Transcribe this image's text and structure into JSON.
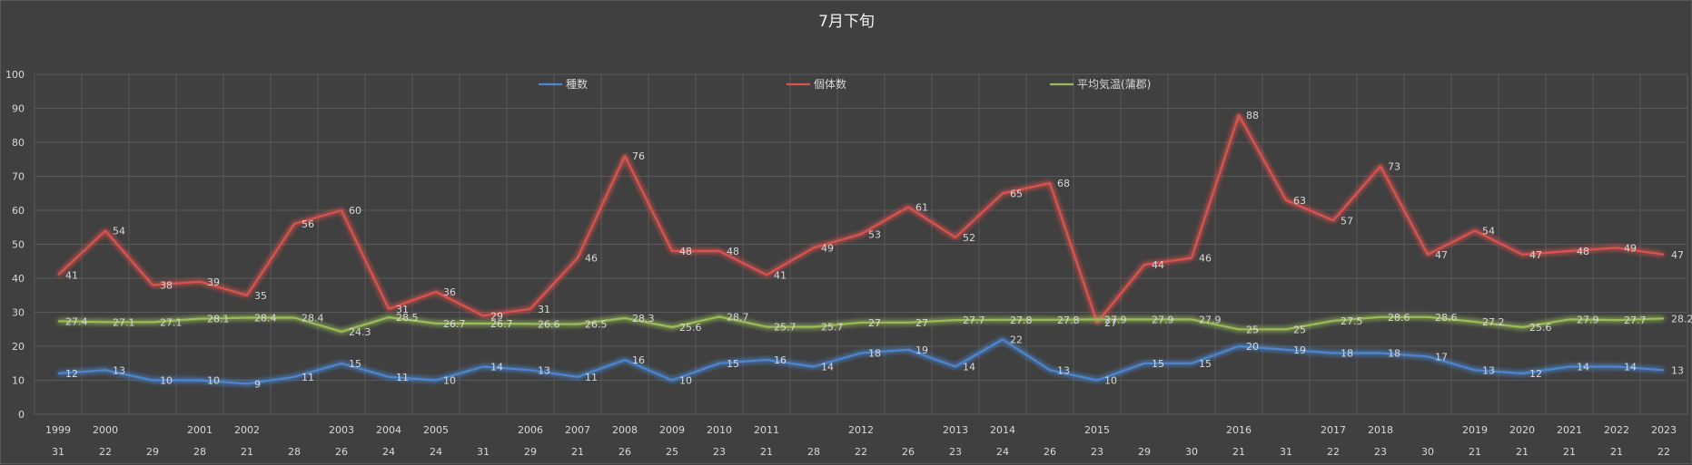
{
  "chart_data": {
    "type": "line",
    "title": "7月下旬",
    "xlabel": "",
    "ylabel": "",
    "ylim": [
      0,
      100
    ],
    "yticks": [
      0,
      10,
      20,
      30,
      40,
      50,
      60,
      70,
      80,
      90,
      100
    ],
    "grid": true,
    "legend_position": "top",
    "categories": [
      {
        "year": "1999",
        "day": "31"
      },
      {
        "year": "2000",
        "day": "22"
      },
      {
        "year": "",
        "day": "29"
      },
      {
        "year": "2001",
        "day": "28"
      },
      {
        "year": "2002",
        "day": "21"
      },
      {
        "year": "",
        "day": "28"
      },
      {
        "year": "2003",
        "day": "26"
      },
      {
        "year": "2004",
        "day": "24"
      },
      {
        "year": "2005",
        "day": "24"
      },
      {
        "year": "",
        "day": "31"
      },
      {
        "year": "2006",
        "day": "29"
      },
      {
        "year": "2007",
        "day": "21"
      },
      {
        "year": "2008",
        "day": "26"
      },
      {
        "year": "2009",
        "day": "25"
      },
      {
        "year": "2010",
        "day": "23"
      },
      {
        "year": "2011",
        "day": "21"
      },
      {
        "year": "",
        "day": "28"
      },
      {
        "year": "2012",
        "day": "22"
      },
      {
        "year": "",
        "day": "26"
      },
      {
        "year": "2013",
        "day": "23"
      },
      {
        "year": "2014",
        "day": "24"
      },
      {
        "year": "",
        "day": "26"
      },
      {
        "year": "2015",
        "day": "23"
      },
      {
        "year": "",
        "day": "29"
      },
      {
        "year": "",
        "day": "30"
      },
      {
        "year": "2016",
        "day": "21"
      },
      {
        "year": "",
        "day": "31"
      },
      {
        "year": "2017",
        "day": "22"
      },
      {
        "year": "2018",
        "day": "23"
      },
      {
        "year": "",
        "day": "30"
      },
      {
        "year": "2019",
        "day": "21"
      },
      {
        "year": "2020",
        "day": "21"
      },
      {
        "year": "2021",
        "day": "21"
      },
      {
        "year": "2022",
        "day": "21"
      },
      {
        "year": "2023",
        "day": "22"
      }
    ],
    "series": [
      {
        "name": "種数",
        "color": "#4e86cf",
        "values": [
          12,
          13,
          10,
          10,
          9,
          11,
          15,
          11,
          10,
          14,
          13,
          11,
          16,
          10,
          15,
          16,
          14,
          18,
          19,
          14,
          22,
          13,
          10,
          15,
          15,
          20,
          19,
          18,
          18,
          17,
          13,
          12,
          14,
          14,
          13
        ]
      },
      {
        "name": "個体数",
        "color": "#d9534f",
        "values": [
          41,
          54,
          38,
          39,
          35,
          56,
          60,
          31,
          36,
          29,
          31,
          46,
          76,
          48,
          48,
          41,
          49,
          53,
          61,
          52,
          65,
          68,
          27,
          44,
          46,
          88,
          63,
          57,
          73,
          47,
          54,
          47,
          48,
          49,
          47
        ]
      },
      {
        "name": "平均気温(蒲郡)",
        "color": "#9bbb59",
        "values": [
          27.4,
          27.1,
          27.1,
          28.1,
          28.4,
          28.4,
          24.3,
          28.5,
          26.7,
          26.7,
          26.6,
          26.5,
          28.3,
          25.6,
          28.7,
          25.7,
          25.7,
          27,
          27,
          27.7,
          27.8,
          27.8,
          27.9,
          27.9,
          27.9,
          25,
          25,
          27.5,
          28.6,
          28.6,
          27.2,
          25.6,
          27.9,
          27.7,
          28.2
        ]
      }
    ]
  }
}
